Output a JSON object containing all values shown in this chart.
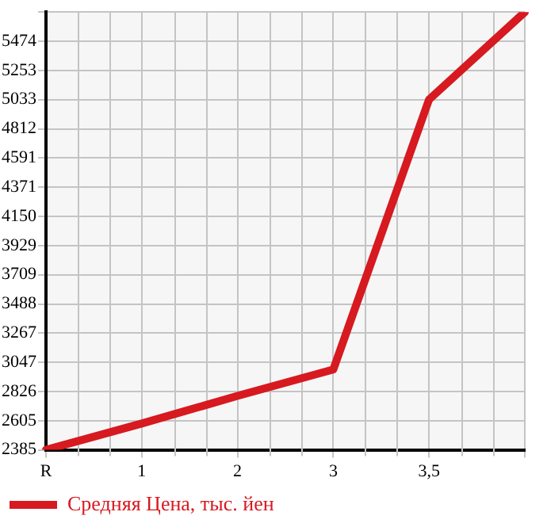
{
  "chart_data": {
    "type": "line",
    "categories": [
      "R",
      "1",
      "2",
      "3",
      "3,5",
      null
    ],
    "series": [
      {
        "name": "Средняя Цена, тыс. йен",
        "color": "#d71920",
        "values": [
          2385,
          2584,
          2793,
          2992,
          5033,
          5695
        ]
      }
    ],
    "ylim": [
      2385,
      5695
    ],
    "yticks": [
      2385,
      2605,
      2826,
      3047,
      3267,
      3488,
      3709,
      3929,
      4150,
      4371,
      4591,
      4812,
      5033,
      5253,
      5474,
      {
        "value": 5695,
        "label": null
      }
    ],
    "grid": true,
    "legend": "bottom left",
    "marker": "none",
    "line_style": "solid"
  }
}
